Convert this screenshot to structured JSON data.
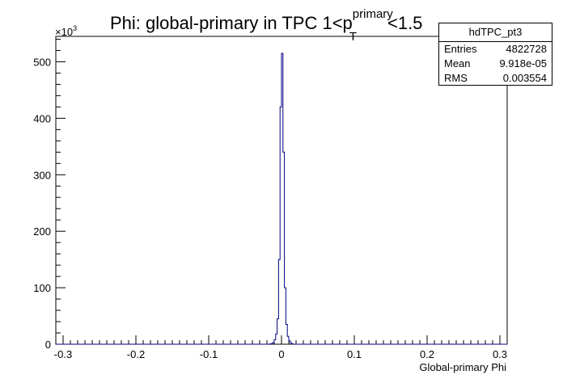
{
  "chart_data": {
    "type": "histogram",
    "title_main": "Phi: global-primary in TPC 1<p",
    "title_sup": "primary",
    "title_sub": "T",
    "title_tail": "<1.5",
    "xlabel": "Global-primary Phi",
    "ylabel": "",
    "y_multiplier": "×10",
    "y_multiplier_exp": "3",
    "xlim": [
      -0.31,
      0.31
    ],
    "ylim": [
      0,
      545
    ],
    "x_ticks": [
      -0.3,
      -0.2,
      -0.1,
      0,
      0.1,
      0.2,
      0.3
    ],
    "x_tick_labels": [
      "-0.3",
      "-0.2",
      "-0.1",
      "0",
      "0.1",
      "0.2",
      "0.3"
    ],
    "y_ticks": [
      0,
      100,
      200,
      300,
      400,
      500
    ],
    "y_tick_labels": [
      "0",
      "100",
      "200",
      "300",
      "400",
      "500"
    ],
    "line_color": "#000080",
    "bins": {
      "x": [
        -0.016,
        -0.014,
        -0.012,
        -0.01,
        -0.008,
        -0.006,
        -0.004,
        -0.002,
        0.0,
        0.002,
        0.004,
        0.006,
        0.008,
        0.01,
        0.012,
        0.014
      ],
      "values": [
        0.5,
        1,
        3,
        8,
        18,
        45,
        150,
        420,
        515,
        340,
        100,
        35,
        14,
        6,
        2.5,
        0.8
      ]
    },
    "stats": {
      "name": "hdTPC_pt3",
      "rows": [
        {
          "label": "Entries",
          "value": "4822728"
        },
        {
          "label": "Mean",
          "value": "9.918e-05"
        },
        {
          "label": "RMS",
          "value": "0.003554"
        }
      ]
    }
  }
}
